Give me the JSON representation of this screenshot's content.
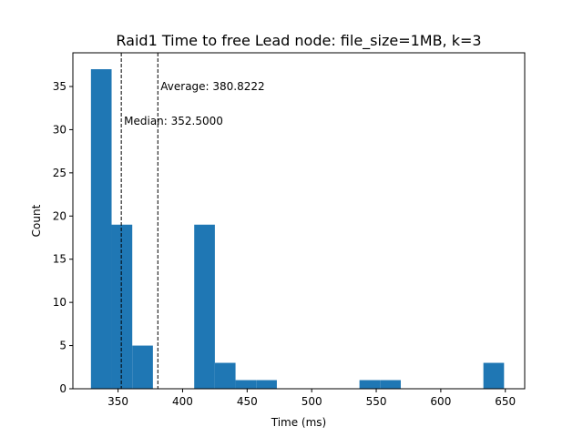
{
  "chart_data": {
    "type": "histogram",
    "title": "Raid1 Time to free Lead node: file_size=1MB, k=3",
    "xlabel": "Time (ms)",
    "ylabel": "Count",
    "xlim": [
      315,
      665
    ],
    "ylim": [
      0,
      38.9
    ],
    "xticks": [
      350,
      400,
      450,
      500,
      550,
      600,
      650
    ],
    "yticks": [
      0,
      5,
      10,
      15,
      20,
      25,
      30,
      35
    ],
    "bar_color": "#1f77b4",
    "bins": [
      {
        "x0": 329,
        "x1": 345,
        "count": 37
      },
      {
        "x0": 345,
        "x1": 361,
        "count": 19
      },
      {
        "x0": 361,
        "x1": 377,
        "count": 5
      },
      {
        "x0": 377,
        "x1": 393,
        "count": 0
      },
      {
        "x0": 393,
        "x1": 409,
        "count": 0
      },
      {
        "x0": 409,
        "x1": 425,
        "count": 19
      },
      {
        "x0": 425,
        "x1": 441,
        "count": 3
      },
      {
        "x0": 441,
        "x1": 457,
        "count": 1
      },
      {
        "x0": 457,
        "x1": 473,
        "count": 1
      },
      {
        "x0": 473,
        "x1": 489,
        "count": 0
      },
      {
        "x0": 489,
        "x1": 505,
        "count": 0
      },
      {
        "x0": 505,
        "x1": 521,
        "count": 0
      },
      {
        "x0": 521,
        "x1": 537,
        "count": 0
      },
      {
        "x0": 537,
        "x1": 553,
        "count": 1
      },
      {
        "x0": 553,
        "x1": 569,
        "count": 1
      },
      {
        "x0": 569,
        "x1": 585,
        "count": 0
      },
      {
        "x0": 585,
        "x1": 601,
        "count": 0
      },
      {
        "x0": 601,
        "x1": 617,
        "count": 0
      },
      {
        "x0": 617,
        "x1": 633,
        "count": 0
      },
      {
        "x0": 633,
        "x1": 649,
        "count": 3
      }
    ],
    "vlines": [
      {
        "x": 352.5,
        "label": "Median: 352.5000",
        "label_y": 31
      },
      {
        "x": 380.8222,
        "label": "Average: 380.8222",
        "label_y": 35
      }
    ]
  }
}
